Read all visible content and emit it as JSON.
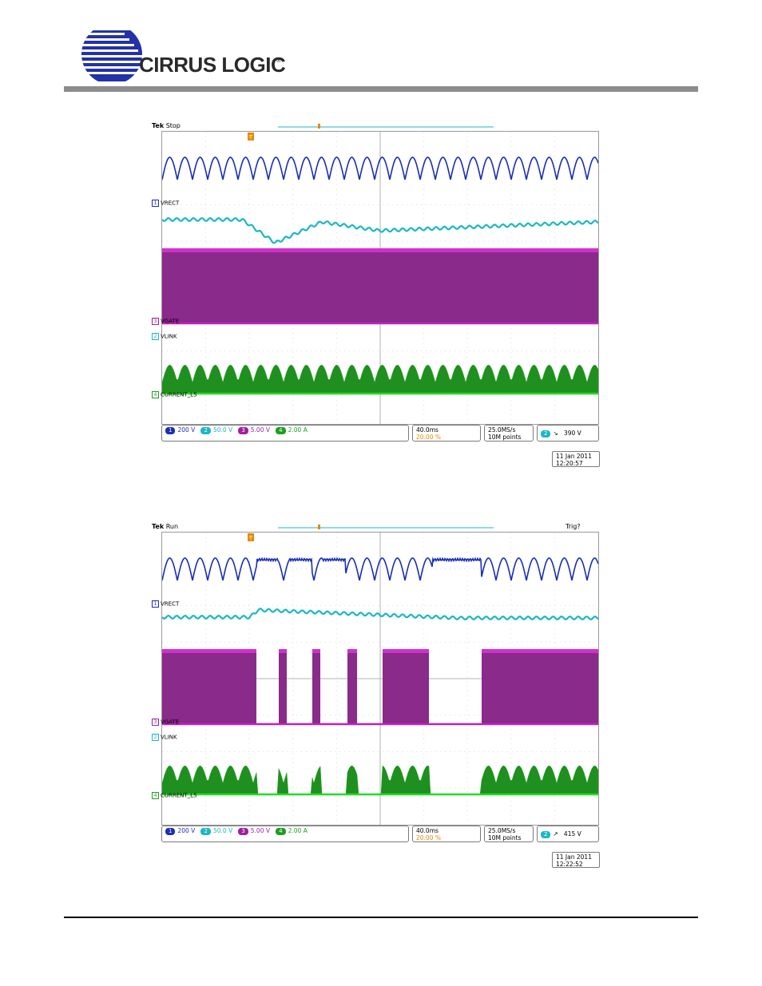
{
  "company": {
    "name": "CIRRUS LOGIC",
    "registered": "®"
  },
  "colors": {
    "ch1": "#1a2eb5",
    "ch2": "#1bb7c4",
    "ch3": "#a020a0",
    "ch4": "#1e9e1e",
    "trigger": "#e38a00",
    "rule": "#8c8c8c"
  },
  "scopes": [
    {
      "brand": "Tek",
      "state": "Stop",
      "trig_status": "",
      "labels": {
        "ch1": "VRECT",
        "ch3": "VGATE",
        "ch2": "VLINK",
        "ch4": "CURRENT_L5"
      },
      "ch_numbers": {
        "ch1": "1",
        "ch2": "2",
        "ch3": "3",
        "ch4": "4"
      },
      "settings": {
        "ch1": "200 V",
        "ch2": "50.0 V",
        "ch3": "5.00 V",
        "ch4": "2.00 A"
      },
      "timebase": "40.0ms",
      "trigger_pos": "20.00 %",
      "sample_rate": "25.0MS/s",
      "record": "10M points",
      "trig_channel": "2",
      "trig_slope": "↘",
      "trig_level": "390 V",
      "date": "11 Jan  2011",
      "time": "12:20:57"
    },
    {
      "brand": "Tek",
      "state": "Run",
      "trig_status": "Trig?",
      "labels": {
        "ch1": "VRECT",
        "ch3": "VGATE",
        "ch2": "VLINK",
        "ch4": "CURRENT_L5"
      },
      "ch_numbers": {
        "ch1": "1",
        "ch2": "2",
        "ch3": "3",
        "ch4": "4"
      },
      "settings": {
        "ch1": "200 V",
        "ch2": "50.0 V",
        "ch3": "5.00 V",
        "ch4": "2.00 A"
      },
      "timebase": "40.0ms",
      "trigger_pos": "20.00 %",
      "sample_rate": "25.0MS/s",
      "record": "10M points",
      "trig_channel": "2",
      "trig_slope": "↗",
      "trig_level": "415 V",
      "date": "11 Jan  2011",
      "time": "12:22:52"
    }
  ]
}
